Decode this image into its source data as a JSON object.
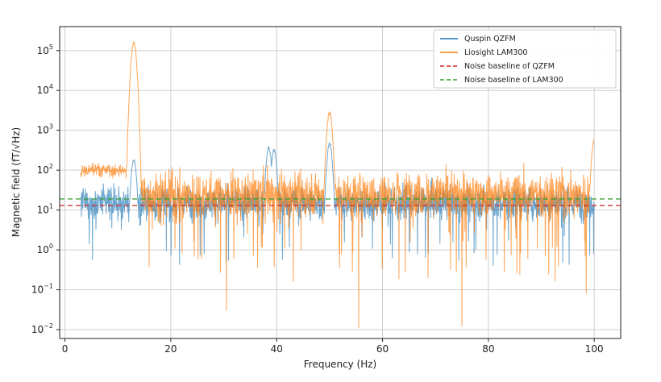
{
  "chart_data": {
    "type": "line",
    "xlabel": "Frequency (Hz)",
    "ylabel": "Magnetic field (fT/√Hz)",
    "xlim": [
      -1,
      105
    ],
    "ylim": [
      0.006,
      400000
    ],
    "yscale": "log",
    "grid": true,
    "legend_position": "top-right",
    "x_ticks": [
      0,
      20,
      40,
      60,
      80,
      100
    ],
    "y_ticks": [
      0.01,
      0.1,
      1,
      10,
      100,
      1000,
      10000,
      100000
    ],
    "y_tick_labels": [
      {
        "base": "10",
        "exp": "−2"
      },
      {
        "base": "10",
        "exp": "−1"
      },
      {
        "base": "10",
        "exp": "0"
      },
      {
        "base": "10",
        "exp": "1"
      },
      {
        "base": "10",
        "exp": "2"
      },
      {
        "base": "10",
        "exp": "3"
      },
      {
        "base": "10",
        "exp": "4"
      },
      {
        "base": "10",
        "exp": "5"
      }
    ],
    "series": [
      {
        "name": "Quspin QZFM",
        "color": "#1f77b4",
        "x_range": [
          3,
          100
        ],
        "typical_level": 15,
        "peaks": [
          {
            "x": 13,
            "y": 200
          },
          {
            "x": 38.5,
            "y": 400
          },
          {
            "x": 39.5,
            "y": 350
          },
          {
            "x": 50,
            "y": 500
          }
        ]
      },
      {
        "name": "Liosight LAM300",
        "color": "#ff7f0e",
        "x_range": [
          3,
          100
        ],
        "typical_level": 25,
        "peaks": [
          {
            "x": 13,
            "y": 170000
          },
          {
            "x": 50,
            "y": 3000
          },
          {
            "x": 100,
            "y": 600
          }
        ],
        "dips": [
          {
            "x": 30.5,
            "y": 0.03
          },
          {
            "x": 55.5,
            "y": 0.011
          },
          {
            "x": 75,
            "y": 0.012
          },
          {
            "x": 98.5,
            "y": 0.08
          }
        ]
      },
      {
        "name": "Noise baseline of QZFM",
        "color": "#d62728",
        "style": "dashed",
        "value": 13
      },
      {
        "name": "Noise baseline of LAM300",
        "color": "#2ca02c",
        "style": "dashed",
        "value": 19
      }
    ]
  }
}
